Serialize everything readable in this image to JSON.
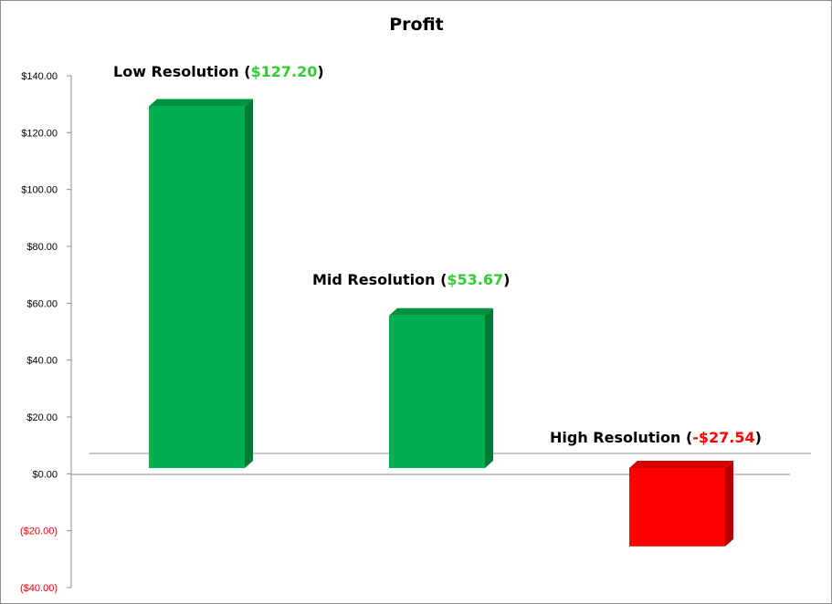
{
  "chart_data": {
    "type": "bar",
    "title": "Profit",
    "xlabel": "",
    "ylabel": "",
    "ylim": [
      -40,
      140
    ],
    "y_ticks": [
      "$140.00",
      "$120.00",
      "$100.00",
      "$80.00",
      "$60.00",
      "$40.00",
      "$20.00",
      "$0.00",
      "($20.00)",
      "($40.00)"
    ],
    "y_tick_values": [
      140,
      120,
      100,
      80,
      60,
      40,
      20,
      0,
      -20,
      -40
    ],
    "categories": [
      "Low Resolution",
      "Mid Resolution",
      "High Resolution"
    ],
    "values": [
      127.2,
      53.67,
      -27.54
    ],
    "value_labels": [
      "$127.20",
      "$53.67",
      "-$27.54"
    ],
    "bar_labels": [
      {
        "name": "Low Resolution",
        "open": " (",
        "value": "$127.20",
        "close": ")"
      },
      {
        "name": "Mid Resolution",
        "open": " (",
        "value": "$53.67",
        "close": ")"
      },
      {
        "name": "High Resolution",
        "open": " (",
        "value": "-$27.54",
        "close": ")"
      }
    ],
    "grid": false,
    "legend": "none",
    "style": "3d-column",
    "colors": {
      "positive": "#00b050",
      "positive_side": "#007a38",
      "positive_top": "#00923f",
      "negative": "#ff0000",
      "negative_side": "#b80000",
      "negative_top": "#d40000",
      "positive_label": "#33cc33",
      "negative_label": "#ff0000",
      "negative_tick": "#ff0000",
      "axis": "#8c8c8c"
    }
  }
}
